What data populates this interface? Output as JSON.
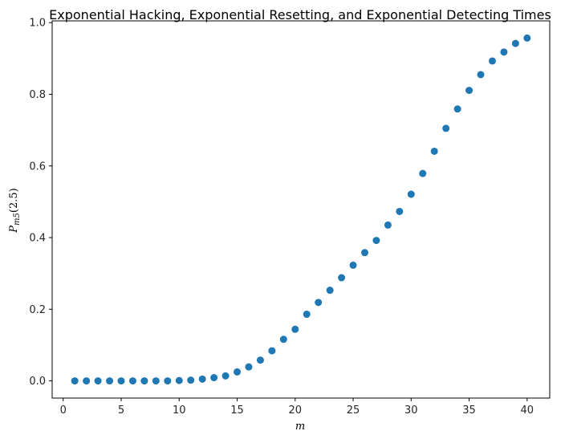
{
  "chart_data": {
    "type": "scatter",
    "title": "Exponential Hacking, Exponential Resetting, and Exponential Detecting Times",
    "xlabel": "m",
    "ylabel": {
      "main": "P",
      "sub": "m5",
      "suffix": "(2.5)"
    },
    "xlim": [
      -0.95,
      41.95
    ],
    "ylim": [
      -0.048,
      1.005
    ],
    "xticks": [
      0,
      5,
      10,
      15,
      20,
      25,
      30,
      35,
      40
    ],
    "yticks": [
      0.0,
      0.2,
      0.4,
      0.6,
      0.8,
      1.0
    ],
    "ytick_labels": [
      "0.0",
      "0.2",
      "0.4",
      "0.6",
      "0.8",
      "1.0"
    ],
    "marker_color": "#1f77b4",
    "grid": false,
    "x": [
      1,
      2,
      3,
      4,
      5,
      6,
      7,
      8,
      9,
      10,
      11,
      12,
      13,
      14,
      15,
      16,
      17,
      18,
      19,
      20,
      21,
      22,
      23,
      24,
      25,
      26,
      27,
      28,
      29,
      30,
      31,
      32,
      33,
      34,
      35,
      36,
      37,
      38,
      39,
      40
    ],
    "y": [
      0.0,
      0.0,
      0.0,
      0.0,
      0.0,
      0.0,
      0.0,
      0.0,
      0.0,
      0.001,
      0.002,
      0.005,
      0.009,
      0.014,
      0.025,
      0.039,
      0.058,
      0.084,
      0.116,
      0.144,
      0.186,
      0.219,
      0.253,
      0.288,
      0.323,
      0.358,
      0.392,
      0.435,
      0.473,
      0.521,
      0.579,
      0.641,
      0.705,
      0.759,
      0.811,
      0.855,
      0.893,
      0.918,
      0.942,
      0.957
    ]
  }
}
